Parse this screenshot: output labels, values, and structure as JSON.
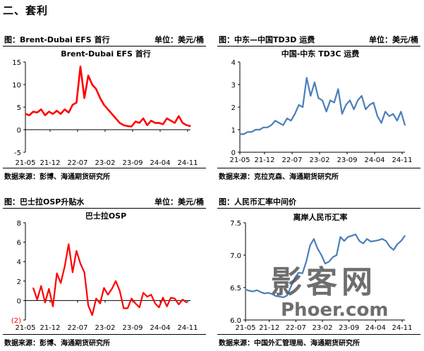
{
  "section_title": "二、套利",
  "panels": [
    {
      "title": "图：Brent-Dubai EFS 首行",
      "unit": "单位：美元/桶",
      "source": "数据来源：彭博、海通期货研究所"
    },
    {
      "title": "图：中东—中国TD3D 运费",
      "unit": "单位：美元/桶",
      "source": "数据来源：克拉克森、海通期货研究所"
    },
    {
      "title": "图：巴士拉OSP升贴水",
      "unit": "单位：美元/桶",
      "source": "数据来源：彭博、海通期货研究所"
    },
    {
      "title": "图：人民币汇率中间价",
      "unit": "",
      "source": "数据来源：中国外汇管理局、海通期货研究所"
    }
  ],
  "watermark": {
    "brand": "影客网",
    "domain": "Phoer.com"
  },
  "chart_data": [
    {
      "type": "line",
      "title": "Brent-Dubai EFS 首行",
      "color": "#FF0000",
      "ylim": [
        -5,
        15
      ],
      "yticks": [
        "15",
        "10",
        "5",
        "0",
        "-5"
      ],
      "ytick_values": [
        15,
        10,
        5,
        0,
        -5
      ],
      "xticks": [
        "21-05",
        "21-12",
        "22-07",
        "23-02",
        "23-09",
        "24-04",
        "24-11"
      ],
      "x_range": [
        0,
        42
      ],
      "x": [
        0,
        1,
        2,
        3,
        4,
        5,
        6,
        7,
        8,
        9,
        10,
        11,
        12,
        13,
        14,
        15,
        16,
        17,
        18,
        19,
        20,
        21,
        22,
        23,
        24,
        25,
        26,
        27,
        28,
        29,
        30,
        31,
        32,
        33,
        34,
        35,
        36,
        37,
        38,
        39,
        40,
        41,
        42
      ],
      "values": [
        3.5,
        3.2,
        4,
        3.8,
        4.5,
        3.2,
        4,
        3.5,
        4.2,
        3.5,
        4.5,
        3.8,
        5.5,
        6,
        14,
        7,
        12,
        10,
        9,
        7,
        5.5,
        4.5,
        3.5,
        2.5,
        1.5,
        1,
        0.8,
        0.7,
        1.8,
        1.5,
        2.5,
        1,
        2,
        1.5,
        1.5,
        1.2,
        2.5,
        2,
        1.5,
        3,
        1.5,
        1,
        0.8
      ]
    },
    {
      "type": "line",
      "title": "中国-中东 TD3C 运费",
      "color": "#4A7EBB",
      "ylim": [
        0,
        4
      ],
      "yticks": [
        "4",
        "3",
        "2",
        "1",
        "0"
      ],
      "ytick_values": [
        4,
        3,
        2,
        1,
        0
      ],
      "xticks": [
        "21-05",
        "21-12",
        "22-07",
        "23-02",
        "23-09",
        "24-04",
        "24-11"
      ],
      "x_range": [
        0,
        42
      ],
      "x": [
        0,
        1,
        2,
        3,
        4,
        5,
        6,
        7,
        8,
        9,
        10,
        11,
        12,
        13,
        14,
        15,
        16,
        17,
        18,
        19,
        20,
        21,
        22,
        23,
        24,
        25,
        26,
        27,
        28,
        29,
        30,
        31,
        32,
        33,
        34,
        35,
        36,
        37,
        38,
        39,
        40,
        41,
        42
      ],
      "values": [
        0.8,
        0.8,
        0.9,
        0.9,
        1,
        1,
        1.1,
        1.1,
        1.2,
        1.4,
        1.3,
        1.2,
        1.5,
        1.4,
        1.7,
        2.1,
        2,
        3.3,
        2.5,
        3.1,
        2.4,
        2.3,
        1.8,
        2.3,
        2.2,
        2.8,
        1.7,
        2.1,
        2.3,
        1.9,
        2.3,
        2.5,
        1.9,
        2.1,
        2.2,
        1.6,
        1.3,
        1.8,
        1.6,
        1.7,
        1.4,
        1.8,
        1.2
      ]
    },
    {
      "type": "line",
      "title": "巴士拉OSP",
      "color": "#FF0000",
      "ylim": [
        -2,
        8
      ],
      "yticks": [
        "8",
        "6",
        "4",
        "2",
        "0",
        "(2)"
      ],
      "ytick_values": [
        8,
        6,
        4,
        2,
        0,
        -2
      ],
      "ytick_colors": [
        "#000000",
        "#000000",
        "#000000",
        "#000000",
        "#000000",
        "#FF0000"
      ],
      "xticks": [
        "21-05",
        "21-12",
        "22-07",
        "23-02",
        "23-09",
        "24-04",
        "24-11"
      ],
      "x_range": [
        0,
        42
      ],
      "x": [
        2,
        3,
        4,
        5,
        6,
        7,
        8,
        9,
        10,
        11,
        12,
        13,
        14,
        15,
        16,
        17,
        18,
        19,
        20,
        21,
        22,
        23,
        24,
        25,
        26,
        27,
        28,
        29,
        30,
        31,
        32,
        33,
        34,
        35,
        36,
        37,
        38,
        39,
        40,
        41
      ],
      "values": [
        1.3,
        0.1,
        1.5,
        -0.2,
        1.2,
        -0.6,
        2.8,
        1.8,
        3.5,
        5.8,
        2.9,
        5.1,
        3.8,
        2.9,
        -0.5,
        -1.5,
        0.2,
        -0.3,
        1.3,
        0.6,
        1.2,
        2,
        1,
        -0.8,
        -0.8,
        0.2,
        -0.3,
        -0.7,
        0.8,
        0.4,
        0.6,
        -0.3,
        -0.7,
        0.3,
        -0.6,
        0.3,
        0.2,
        -0.4,
        0.1,
        -0.2
      ]
    },
    {
      "type": "line",
      "title": "离岸人民币汇率",
      "color": "#4A7EBB",
      "ylim": [
        6.0,
        7.5
      ],
      "yticks": [
        "7.5",
        "7.0",
        "6.5",
        "6.0"
      ],
      "ytick_values": [
        7.5,
        7.0,
        6.5,
        6.0
      ],
      "xticks": [
        "21-05",
        "21-12",
        "22-07",
        "23-02",
        "23-09",
        "24-04",
        "24-11"
      ],
      "x_range": [
        0,
        42
      ],
      "x": [
        0,
        1,
        2,
        3,
        4,
        5,
        6,
        7,
        8,
        9,
        10,
        11,
        12,
        13,
        14,
        15,
        16,
        17,
        18,
        19,
        20,
        21,
        22,
        23,
        24,
        25,
        26,
        27,
        28,
        29,
        30,
        31,
        32,
        33,
        34,
        35,
        36,
        37,
        38,
        39,
        40,
        41,
        42
      ],
      "values": [
        6.47,
        6.45,
        6.44,
        6.46,
        6.43,
        6.41,
        6.42,
        6.4,
        6.37,
        6.36,
        6.35,
        6.38,
        6.52,
        6.65,
        6.73,
        6.72,
        6.9,
        7.15,
        7.25,
        7.1,
        7.0,
        6.87,
        6.9,
        6.97,
        7.0,
        7.28,
        7.22,
        7.28,
        7.3,
        7.32,
        7.22,
        7.18,
        7.25,
        7.21,
        7.22,
        7.23,
        7.25,
        7.22,
        7.13,
        7.08,
        7.17,
        7.22,
        7.3
      ]
    }
  ]
}
